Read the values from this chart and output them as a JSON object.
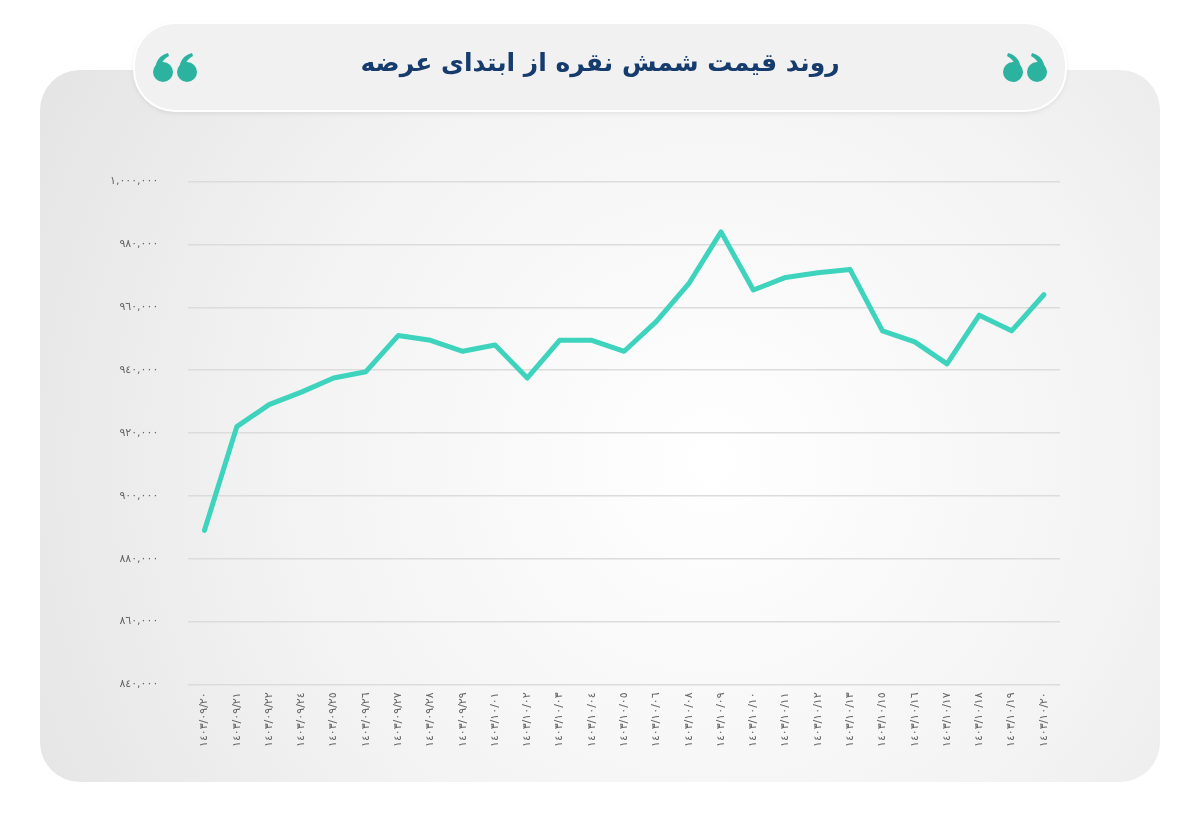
{
  "chart_data": {
    "type": "line",
    "title": "روند قیمت شمش نقره از ابتدای عرضه",
    "categories": [
      "١٤٠٣/٠٩/٢٠",
      "١٤٠٣/٠٩/٢١",
      "١٤٠٣/٠٩/٢٢",
      "١٤٠٣/٠٩/٢٤",
      "١٤٠٣/٠٩/٢٥",
      "١٤٠٣/٠٩/٢٦",
      "١٤٠٣/٠٩/٢٧",
      "١٤٠٣/٠٩/٢٨",
      "١٤٠٣/٠٩/٢٩",
      "١٤٠٣/١٠/٠١",
      "١٤٠٣/١٠/٠٢",
      "١٤٠٣/١٠/٠٣",
      "١٤٠٣/١٠/٠٤",
      "١٤٠٣/١٠/٠٥",
      "١٤٠٣/١٠/٠٦",
      "١٤٠٣/١٠/٠٨",
      "١٤٠٣/١٠/٠٩",
      "١٤٠٣/١٠/١٠",
      "١٤٠٣/١٠/١١",
      "١٤٠٣/١٠/١٢",
      "١٤٠٣/١٠/١٣",
      "١٤٠٣/١٠/١٥",
      "١٤٠٣/١٠/١٦",
      "١٤٠٣/١٠/١٧",
      "١٤٠٣/١٠/١٨",
      "١٤٠٣/١٠/١٩",
      "١٤٠٣/١٠/٢٠"
    ],
    "series": [
      {
        "color": "#3ed3bd",
        "values": [
          889000,
          922000,
          929000,
          933000,
          937500,
          939500,
          951000,
          949500,
          946000,
          948000,
          937500,
          949500,
          949500,
          946000,
          955500,
          967500,
          984000,
          965500,
          969500,
          971000,
          972000,
          952500,
          949000,
          942000,
          957500,
          952500,
          964000
        ]
      }
    ],
    "ylim": [
      840000,
      1000000
    ],
    "yticks": [
      {
        "value": 840000,
        "label": "٨٤٠,٠٠٠"
      },
      {
        "value": 860000,
        "label": "٨٦٠,٠٠٠"
      },
      {
        "value": 880000,
        "label": "٨٨٠,٠٠٠"
      },
      {
        "value": 900000,
        "label": "٩٠٠,٠٠٠"
      },
      {
        "value": 920000,
        "label": "٩٢٠,٠٠٠"
      },
      {
        "value": 940000,
        "label": "٩٤٠,٠٠٠"
      },
      {
        "value": 960000,
        "label": "٩٦٠,٠٠٠"
      },
      {
        "value": 980000,
        "label": "٩٨٠,٠٠٠"
      },
      {
        "value": 1000000,
        "label": "١,٠٠٠,٠٠٠"
      }
    ],
    "grid": "y",
    "legend": false,
    "marker": "none",
    "line_style": "solid"
  }
}
